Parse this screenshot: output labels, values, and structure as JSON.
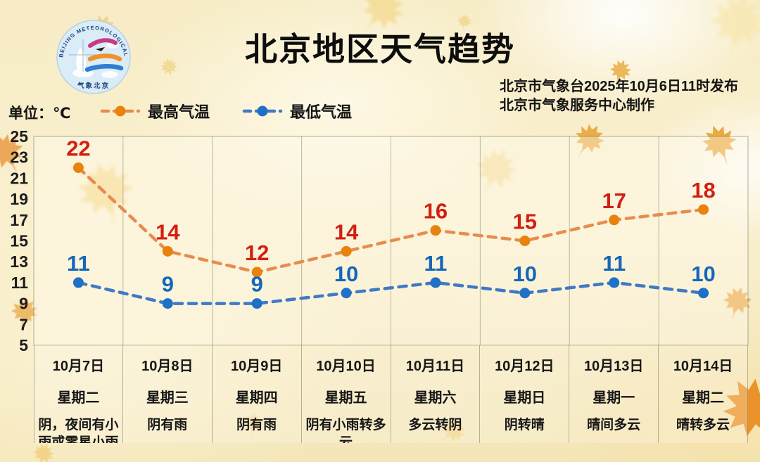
{
  "header": {
    "title": "北京地区天气趋势",
    "issued_line1": "北京市气象台2025年10月6日11时发布",
    "issued_line2": "北京市气象服务中心制作",
    "unit_label": "单位：℃",
    "logo": {
      "top_text": "BEIJING METEOROLOGICAL SERVICE",
      "bottom_text": "气象北京"
    }
  },
  "colors": {
    "grid_line": "rgba(120,125,100,0.5)",
    "plot_background": "rgba(255,253,243,0.38)",
    "axis_text": "#1c1c1c"
  },
  "chart_data": {
    "type": "line",
    "title": "北京地区天气趋势",
    "unit": "℃",
    "categories": [
      "10月7日",
      "10月8日",
      "10月9日",
      "10月10日",
      "10月11日",
      "10月12日",
      "10月13日",
      "10月14日"
    ],
    "weekdays": [
      "星期二",
      "星期三",
      "星期四",
      "星期五",
      "星期六",
      "星期日",
      "星期一",
      "星期二"
    ],
    "weather": [
      "阴，夜间有小雨或零星小雨",
      "阴有雨",
      "阴有雨",
      "阴有小雨转多云",
      "多云转阴",
      "阴转晴",
      "晴间多云",
      "晴转多云"
    ],
    "ylim": [
      5,
      25
    ],
    "yticks": [
      25,
      23,
      21,
      19,
      17,
      15,
      13,
      11,
      9,
      7,
      5
    ],
    "grid": "vertical-only",
    "legend_position": "top-left",
    "series": [
      {
        "name": "最高气温",
        "values": [
          22,
          14,
          12,
          14,
          16,
          15,
          17,
          18
        ],
        "line_color": "#e78c4e",
        "point_color": "#e8820c",
        "label_color": "#d21f12"
      },
      {
        "name": "最低气温",
        "values": [
          11,
          9,
          9,
          10,
          11,
          10,
          11,
          10
        ],
        "line_color": "#4079c4",
        "point_color": "#1e71c6",
        "label_color": "#1467bb"
      }
    ]
  }
}
